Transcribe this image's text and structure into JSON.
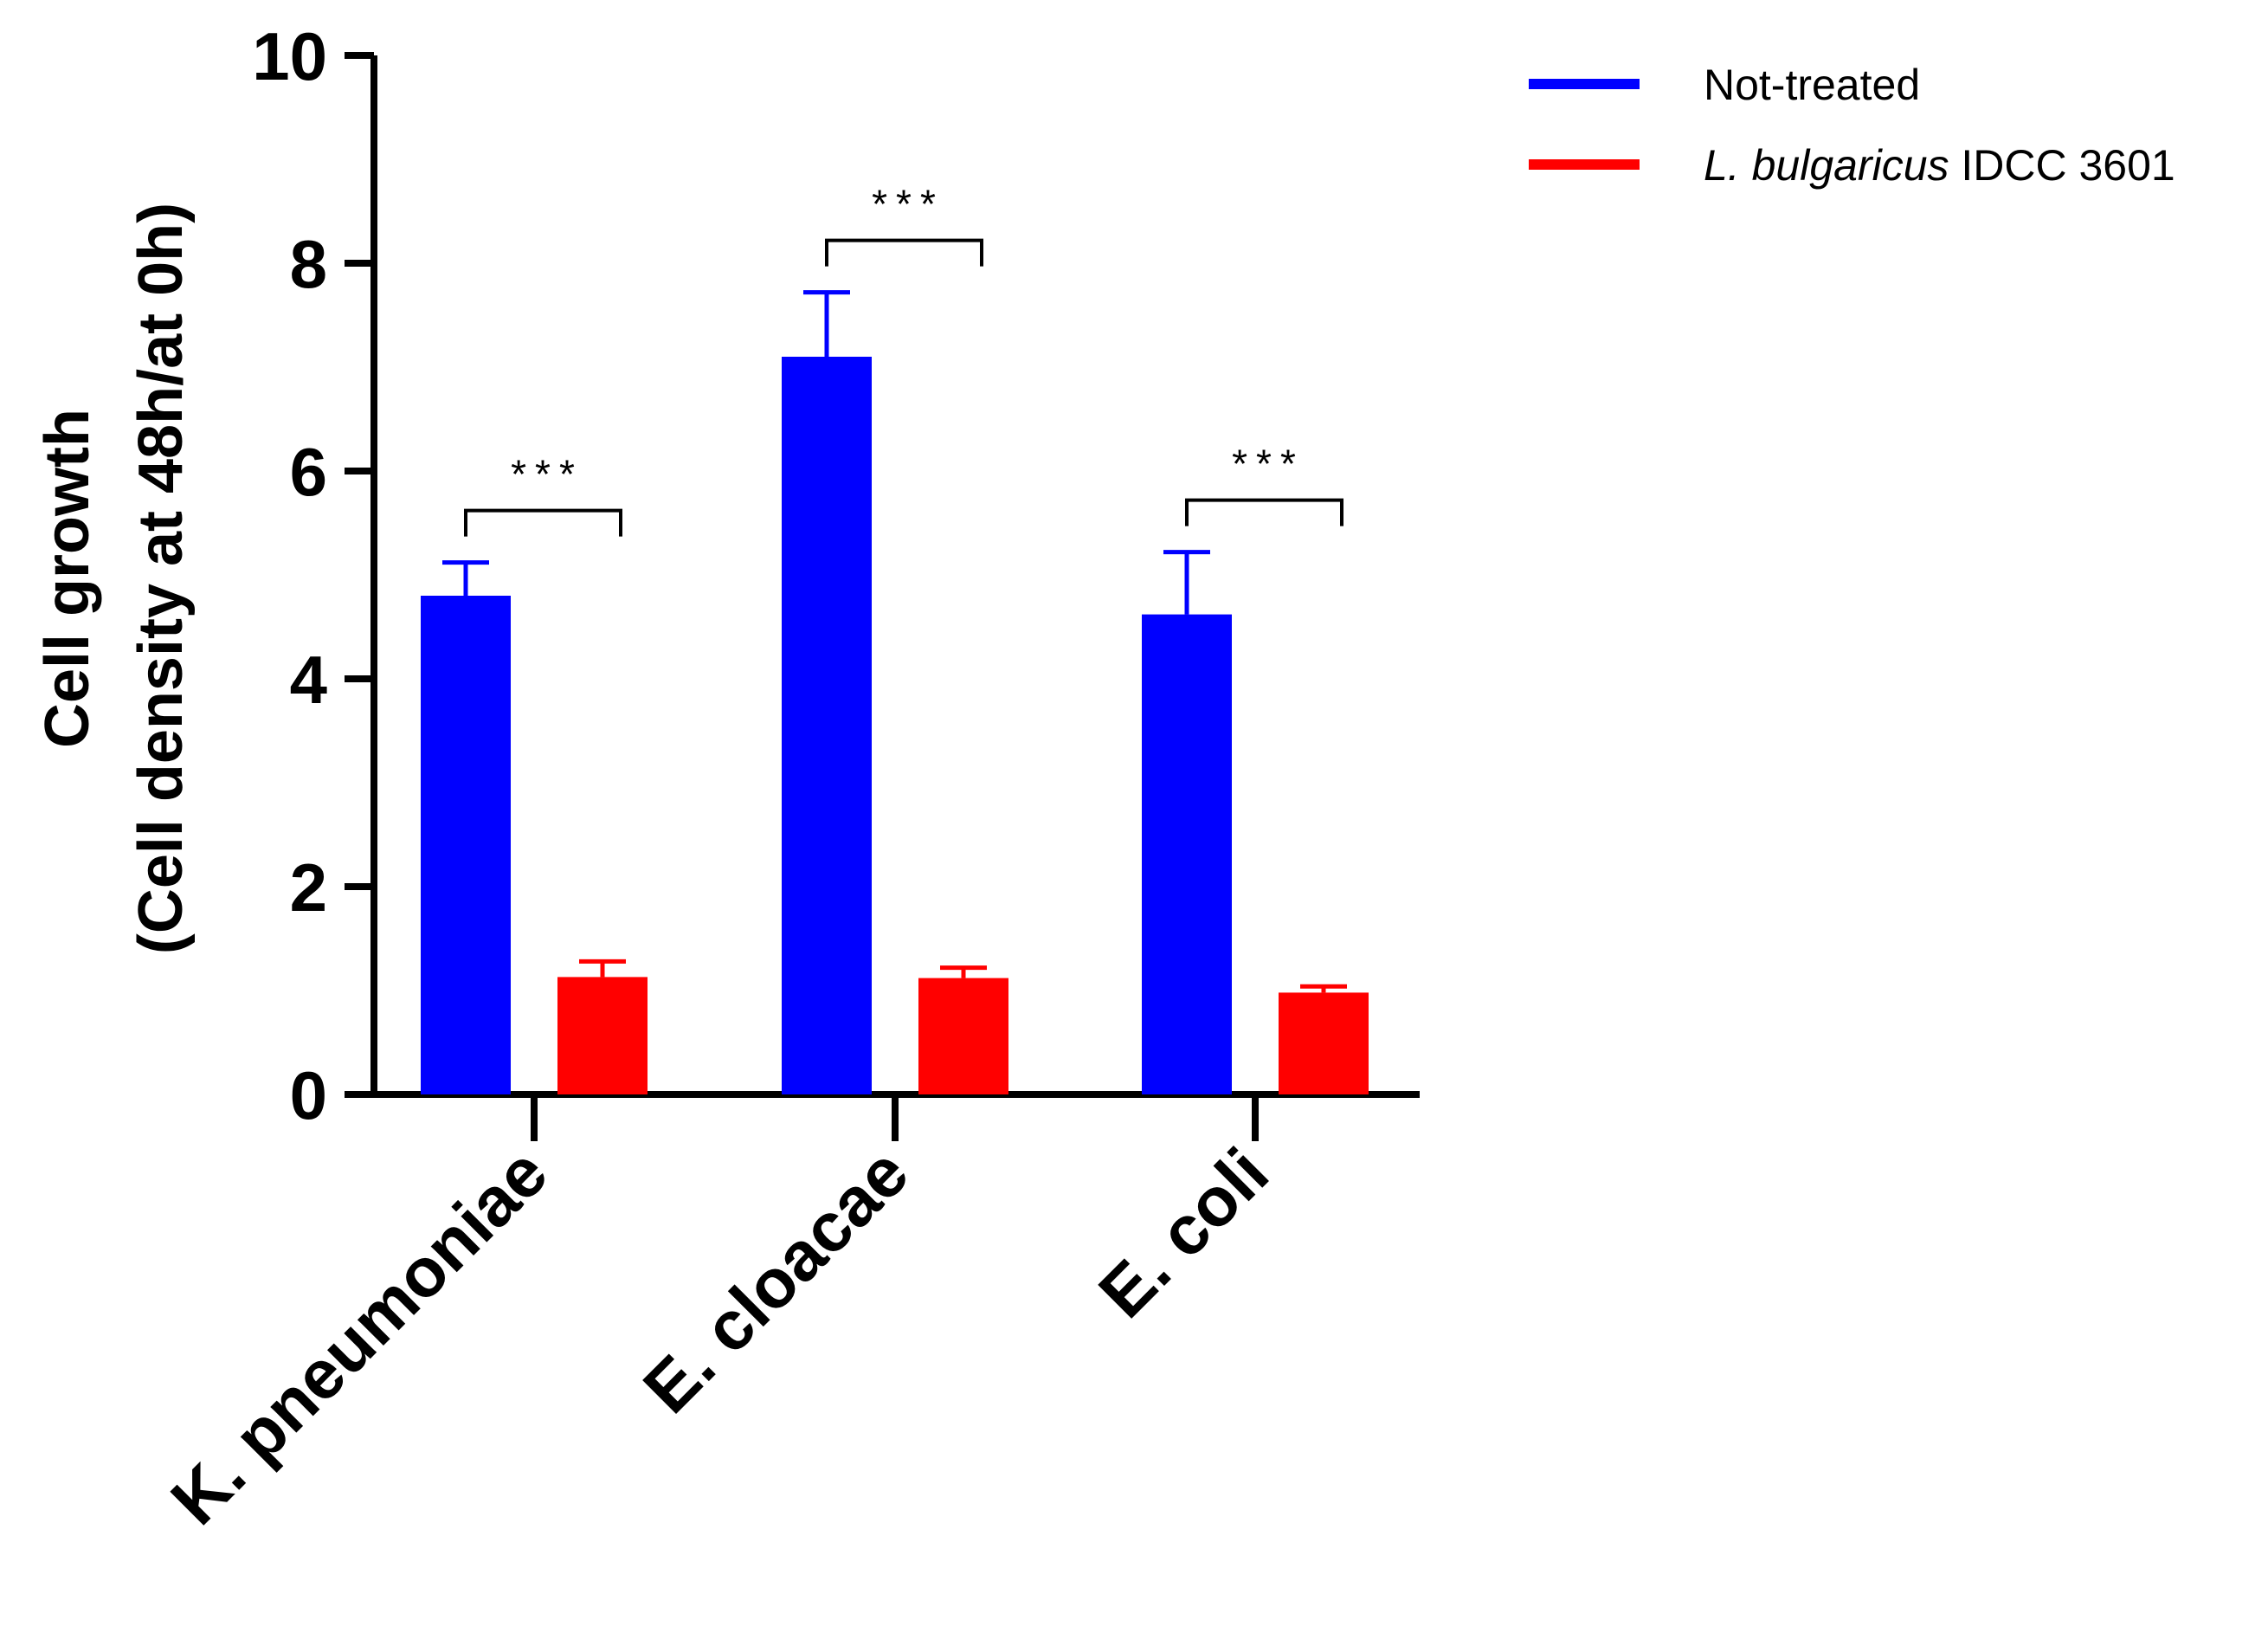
{
  "chart_data": {
    "type": "bar",
    "categories": [
      "K. pneumoniae",
      "E. cloacae",
      "E. coli"
    ],
    "series": [
      {
        "name": "Not-treated",
        "color": "#0000ff",
        "values": [
          4.8,
          7.1,
          4.62
        ],
        "errors": [
          0.32,
          0.62,
          0.6
        ]
      },
      {
        "name": "L. bulgaricus IDCC 3601",
        "name_italic": "L. bulgaricus",
        "name_rest": " IDCC 3601",
        "color": "#ff0000",
        "values": [
          1.13,
          1.12,
          0.98
        ],
        "errors": [
          0.15,
          0.1,
          0.06
        ]
      }
    ],
    "ylabel": "Cell growth",
    "ylabel_sub": "(Cell density at 48h/at 0h)",
    "xlabel": "",
    "ylim": [
      0,
      10
    ],
    "yticks": [
      0,
      2,
      4,
      6,
      8,
      10
    ],
    "legend_position": "top-right",
    "significance": [
      "***",
      "***",
      "***"
    ]
  }
}
